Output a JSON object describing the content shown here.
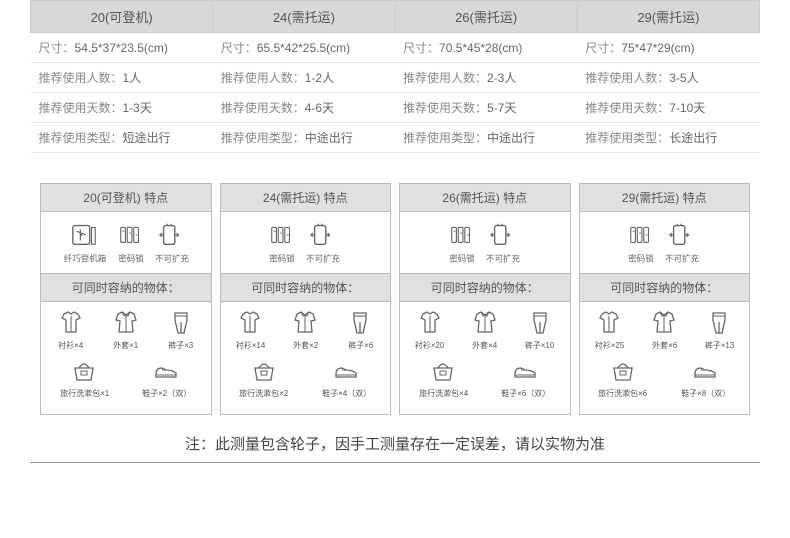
{
  "colors": {
    "header_bg": "#d8d8d8",
    "border": "#bbb",
    "text": "#555"
  },
  "sizes": [
    {
      "title": "20(可登机)",
      "rows": [
        [
          "尺寸：",
          "54.5*37*23.5(cm)"
        ],
        [
          "推荐使用人数：",
          "1人"
        ],
        [
          "推荐使用天数：",
          "1-3天"
        ],
        [
          "推荐使用类型：",
          "短途出行"
        ]
      ]
    },
    {
      "title": "24(需托运)",
      "rows": [
        [
          "尺寸：",
          "65.5*42*25.5(cm)"
        ],
        [
          "推荐使用人数：",
          "1-2人"
        ],
        [
          "推荐使用天数：",
          "4-6天"
        ],
        [
          "推荐使用类型：",
          "中途出行"
        ]
      ]
    },
    {
      "title": "26(需托运)",
      "rows": [
        [
          "尺寸：",
          "70.5*45*28(cm)"
        ],
        [
          "推荐使用人数：",
          "2-3人"
        ],
        [
          "推荐使用天数：",
          "5-7天"
        ],
        [
          "推荐使用类型：",
          "中途出行"
        ]
      ]
    },
    {
      "title": "29(需托运)",
      "rows": [
        [
          "尺寸：",
          "75*47*29(cm)"
        ],
        [
          "推荐使用人数：",
          "3-5人"
        ],
        [
          "推荐使用天数：",
          "7-10天"
        ],
        [
          "推荐使用类型：",
          "长途出行"
        ]
      ]
    }
  ],
  "cards": [
    {
      "title": "20(可登机)  特点",
      "features": [
        {
          "icon": "plane",
          "label": "纤巧登机箱"
        },
        {
          "icon": "lock",
          "label": "密码锁"
        },
        {
          "icon": "noexpand",
          "label": "不可扩充"
        }
      ],
      "capacity_title": "可同时容纳的物体：",
      "items_top": [
        {
          "icon": "shirt",
          "label": "衬衫×4"
        },
        {
          "icon": "jacket",
          "label": "外套×1"
        },
        {
          "icon": "pants",
          "label": "裤子×3"
        }
      ],
      "items_bot": [
        {
          "icon": "bag",
          "label": "旅行洗漱包×1"
        },
        {
          "icon": "shoe",
          "label": "鞋子×2（双）"
        }
      ]
    },
    {
      "title": "24(需托运)  特点",
      "features": [
        {
          "icon": "lock",
          "label": "密码锁"
        },
        {
          "icon": "noexpand",
          "label": "不可扩充"
        }
      ],
      "capacity_title": "可同时容纳的物体：",
      "items_top": [
        {
          "icon": "shirt",
          "label": "衬衫×14"
        },
        {
          "icon": "jacket",
          "label": "外套×2"
        },
        {
          "icon": "pants",
          "label": "裤子×6"
        }
      ],
      "items_bot": [
        {
          "icon": "bag",
          "label": "旅行洗漱包×2"
        },
        {
          "icon": "shoe",
          "label": "鞋子×4（双）"
        }
      ]
    },
    {
      "title": "26(需托运)  特点",
      "features": [
        {
          "icon": "lock",
          "label": "密码锁"
        },
        {
          "icon": "noexpand",
          "label": "不可扩充"
        }
      ],
      "capacity_title": "可同时容纳的物体：",
      "items_top": [
        {
          "icon": "shirt",
          "label": "衬衫×20"
        },
        {
          "icon": "jacket",
          "label": "外套×4"
        },
        {
          "icon": "pants",
          "label": "裤子×10"
        }
      ],
      "items_bot": [
        {
          "icon": "bag",
          "label": "旅行洗漱包×4"
        },
        {
          "icon": "shoe",
          "label": "鞋子×6（双）"
        }
      ]
    },
    {
      "title": "29(需托运)  特点",
      "features": [
        {
          "icon": "lock",
          "label": "密码锁"
        },
        {
          "icon": "noexpand",
          "label": "不可扩充"
        }
      ],
      "capacity_title": "可同时容纳的物体：",
      "items_top": [
        {
          "icon": "shirt",
          "label": "衬衫×25"
        },
        {
          "icon": "jacket",
          "label": "外套×6"
        },
        {
          "icon": "pants",
          "label": "裤子×13"
        }
      ],
      "items_bot": [
        {
          "icon": "bag",
          "label": "旅行洗漱包×6"
        },
        {
          "icon": "shoe",
          "label": "鞋子×8（双）"
        }
      ]
    }
  ],
  "note": "注：此测量包含轮子，因手工测量存在一定误差，请以实物为准",
  "icon_labels": {
    "plane": "plane-icon",
    "lock": "lock-icon",
    "noexpand": "noexpand-icon",
    "shirt": "shirt-icon",
    "jacket": "jacket-icon",
    "pants": "pants-icon",
    "bag": "bag-icon",
    "shoe": "shoe-icon"
  }
}
